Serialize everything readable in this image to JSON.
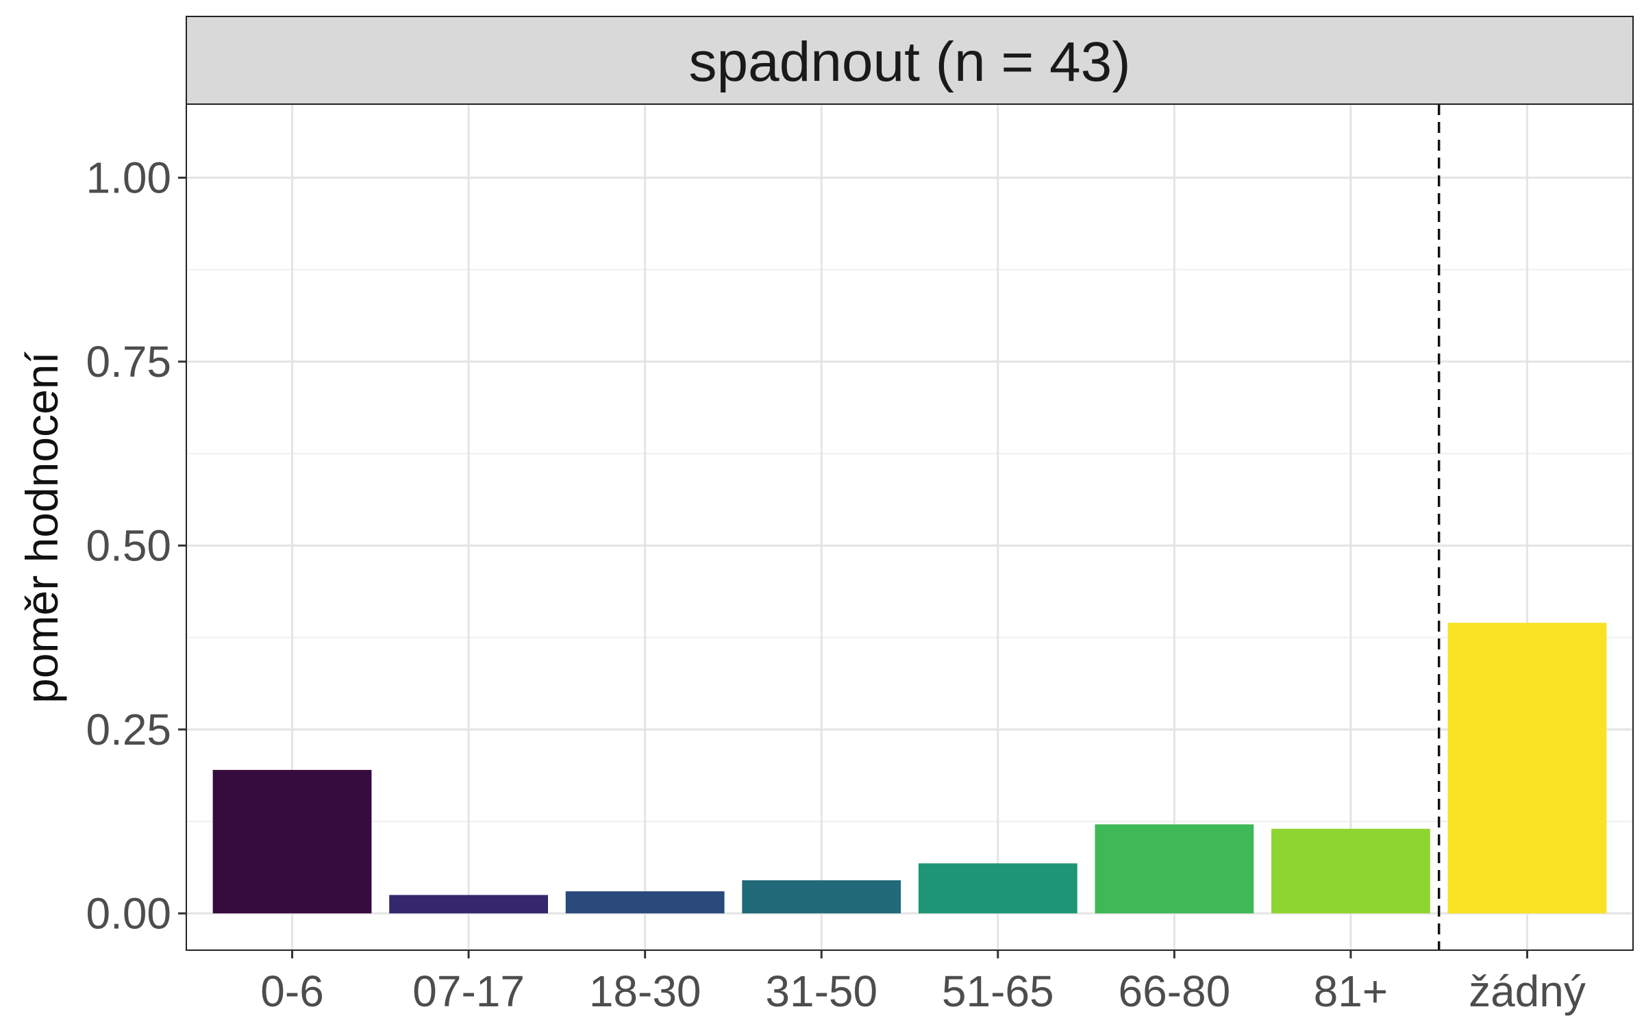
{
  "chart_data": {
    "type": "bar",
    "facet_title": "spadnout (n = 43)",
    "xlabel": "",
    "ylabel": "poměr hodnocení",
    "categories": [
      "0-6",
      "07-17",
      "18-30",
      "31-50",
      "51-65",
      "66-80",
      "81+",
      "žádný"
    ],
    "values": [
      0.195,
      0.025,
      0.03,
      0.045,
      0.068,
      0.121,
      0.115,
      0.395
    ],
    "colors": [
      "#360B3D",
      "#34276D",
      "#2A4A7C",
      "#216A79",
      "#1E9577",
      "#3FB858",
      "#8FD531",
      "#FAE224"
    ],
    "ylim": [
      -0.05,
      1.1
    ],
    "yticks": [
      0,
      0.25,
      0.5,
      0.75,
      1.0
    ],
    "ytick_labels": [
      "0.00",
      "0.25",
      "0.50",
      "0.75",
      "1.00"
    ],
    "separator_after_category": "81+",
    "grid": true,
    "legend": "none"
  }
}
